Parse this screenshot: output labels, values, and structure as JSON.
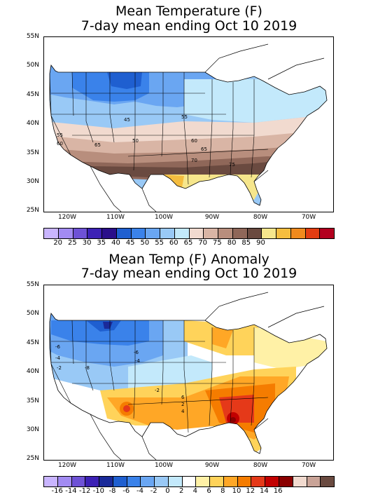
{
  "panel1": {
    "title_line1": "Mean Temperature (F)",
    "title_line2": "7-day mean ending Oct 10 2019",
    "lat_labels": [
      "55N",
      "50N",
      "45N",
      "40N",
      "35N",
      "30N",
      "25N"
    ],
    "lon_labels": [
      "120W",
      "110W",
      "100W",
      "90W",
      "80W",
      "70W"
    ],
    "colorbar": {
      "colors": [
        "#c9b5ff",
        "#a28bf2",
        "#6e52d6",
        "#3c21b5",
        "#2a0f8a",
        "#1f5fd0",
        "#3a82ea",
        "#6aa6f2",
        "#99c9f6",
        "#c3e9fb",
        "#f1dacf",
        "#d9b5a5",
        "#b88e7d",
        "#8f6759",
        "#6a4a40",
        "#f6e68c",
        "#f5bd3f",
        "#f08a1d",
        "#e23d12",
        "#b3001f"
      ],
      "labels": [
        "20",
        "25",
        "30",
        "35",
        "40",
        "45",
        "50",
        "55",
        "60",
        "65",
        "70",
        "75",
        "80",
        "85",
        "90"
      ]
    },
    "contour_labels": [
      "45",
      "55",
      "55",
      "50",
      "60",
      "60",
      "65",
      "70",
      "75",
      "65"
    ]
  },
  "panel2": {
    "title_line1": "Mean Temp (F) Anomaly",
    "title_line2": "7-day mean ending Oct 10 2019",
    "lat_labels": [
      "55N",
      "50N",
      "45N",
      "40N",
      "35N",
      "30N",
      "25N"
    ],
    "lon_labels": [
      "120W",
      "110W",
      "100W",
      "90W",
      "80W",
      "70W"
    ],
    "colorbar": {
      "colors": [
        "#c9b5ff",
        "#a28bf2",
        "#6e52d6",
        "#3c21b5",
        "#1a2a99",
        "#1f5fd0",
        "#3a82ea",
        "#6aa6f2",
        "#99c9f6",
        "#c3e9fb",
        "#ffffff",
        "#fff1a6",
        "#ffd35a",
        "#ffa726",
        "#f57c00",
        "#e53919",
        "#c20000",
        "#8a0000",
        "#f1dacf",
        "#c9a397",
        "#6a4a40"
      ],
      "labels": [
        "-16",
        "-14",
        "-12",
        "-10",
        "-8",
        "-6",
        "-4",
        "-2",
        "0",
        "2",
        "4",
        "6",
        "8",
        "10",
        "12",
        "14",
        "16"
      ]
    },
    "contour_labels": [
      "-6",
      "-4",
      "-2",
      "-8",
      "-6",
      "-4",
      "-2",
      "6",
      "2",
      "4"
    ]
  }
}
